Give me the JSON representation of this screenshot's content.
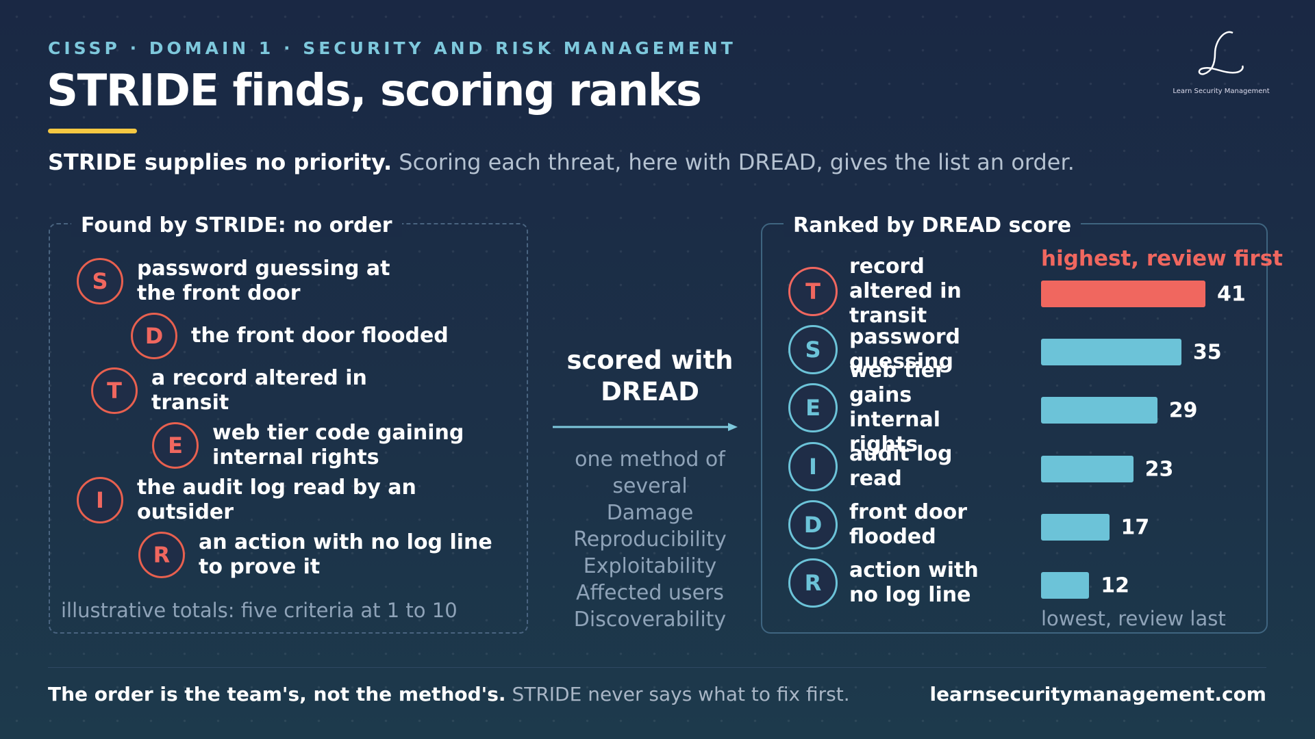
{
  "header": {
    "kicker": "CISSP · DOMAIN 1 · SECURITY AND RISK MANAGEMENT",
    "title": "STRIDE finds, scoring ranks",
    "lead_bold": "STRIDE supplies no priority.",
    "lead": "Scoring each threat, here with DREAD, gives the list an order.",
    "logo_caption": "Learn Security Management"
  },
  "left_panel": {
    "title": "Found by STRIDE: no order",
    "items": [
      {
        "letter": "S",
        "text": "password guessing at the front door"
      },
      {
        "letter": "D",
        "text": "the front door flooded"
      },
      {
        "letter": "T",
        "text": "a record altered in transit"
      },
      {
        "letter": "E",
        "text": "web tier code gaining internal rights"
      },
      {
        "letter": "I",
        "text": "the audit log read by an outsider"
      },
      {
        "letter": "R",
        "text": "an action with no log line to prove it"
      }
    ],
    "note": "illustrative totals: five criteria at 1 to 10"
  },
  "middle": {
    "label": "scored with DREAD",
    "note": "one method of several",
    "criteria": [
      "Damage",
      "Reproducibility",
      "Exploitability",
      "Affected users",
      "Discoverability"
    ]
  },
  "chart_data": {
    "type": "bar",
    "orientation": "horizontal",
    "title": "Ranked by DREAD score",
    "categories": [
      "record altered in transit",
      "password guessing",
      "web tier gains internal rights",
      "audit log read",
      "front door flooded",
      "action with no log line"
    ],
    "letters": [
      "T",
      "S",
      "E",
      "I",
      "D",
      "R"
    ],
    "values": [
      41,
      35,
      29,
      23,
      17,
      12
    ],
    "colors": [
      "#f0675f",
      "#6cc3d8",
      "#6cc3d8",
      "#6cc3d8",
      "#6cc3d8",
      "#6cc3d8"
    ],
    "top_label": "highest, review first",
    "bottom_label": "lowest, review last"
  },
  "footer": {
    "bold": "The order is the team's, not the method's.",
    "text": "STRIDE never says what to fix first.",
    "url": "learnsecuritymanagement.com"
  }
}
